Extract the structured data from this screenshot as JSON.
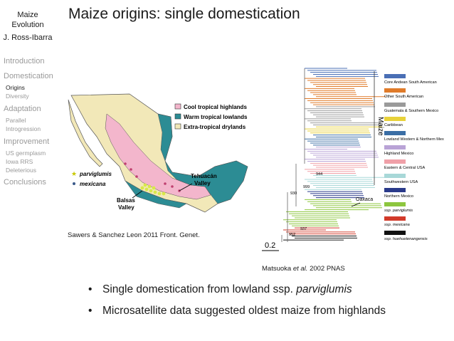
{
  "sidebar": {
    "title_line1": "Maize",
    "title_line2": "Evolution",
    "author": "J. Ross-Ibarra",
    "sections": [
      {
        "label": "Introduction",
        "subs": []
      },
      {
        "label": "Domestication",
        "subs": [
          "Origins",
          "Diversity"
        ]
      },
      {
        "label": "Adaptation",
        "subs": [
          "Parallel",
          "Introgression"
        ]
      },
      {
        "label": "Improvement",
        "subs": [
          "US germplasm",
          "Iowa RRS",
          "Deleterious"
        ]
      },
      {
        "label": "Conclusions",
        "subs": []
      }
    ],
    "active_sub": "Origins"
  },
  "slide": {
    "title": "Maize origins: single domestication",
    "map_legend": [
      "Cool tropical highlands",
      "Warm tropical lowlands",
      "Extra-tropical drylands"
    ],
    "map_symbols": [
      "parviglumis",
      "mexicana"
    ],
    "map_labels": {
      "tehuacan": "Tehuacán",
      "tehuacan2": "Valley",
      "balsas": "Balsas",
      "balsas2": "Valley"
    },
    "left_caption": "Sawers & Sanchez Leon 2011 Front.  Genet.",
    "tree_labels": {
      "maize": "Maize",
      "oaxaca": "Oaxaca",
      "scale": "0.2",
      "n944": "944",
      "n999": "999",
      "n930": "930",
      "n937": "937",
      "n952": "952"
    },
    "tree_legend": [
      {
        "label": "Core Andean South American",
        "color": "#4a6fb5"
      },
      {
        "label": "Other South American",
        "color": "#e07b2a"
      },
      {
        "label": "Guatemala & Southern Mexico",
        "color": "#9a9a9a"
      },
      {
        "label": "Caribbean",
        "color": "#e8d23a"
      },
      {
        "label": "Lowland Western & Northern Mexico",
        "color": "#3a6ea5"
      },
      {
        "label": "Highland Mexico",
        "color": "#b9a3d6"
      },
      {
        "label": "Eastern & Central USA",
        "color": "#f0a0a8"
      },
      {
        "label": "Southwestern USA",
        "color": "#a8d8d8"
      },
      {
        "label": "Northern Mexico",
        "color": "#2a3a8a"
      },
      {
        "label": "ssp. parviglumis",
        "color": "#8dc63f"
      },
      {
        "label": "ssp. mexicana",
        "color": "#d23a2a"
      },
      {
        "label": "ssp. huehuetenangensis",
        "color": "#111111"
      }
    ],
    "right_caption_a": "Matsuoka ",
    "right_caption_b": "et al.",
    "right_caption_c": " 2002 PNAS",
    "bullets": [
      {
        "text": "Single domestication from lowland ssp. ",
        "italic": "parviglumis"
      },
      {
        "text": "Microsatellite data suggested oldest maize from highlands",
        "italic": ""
      }
    ],
    "bullet_symbol": "•"
  }
}
